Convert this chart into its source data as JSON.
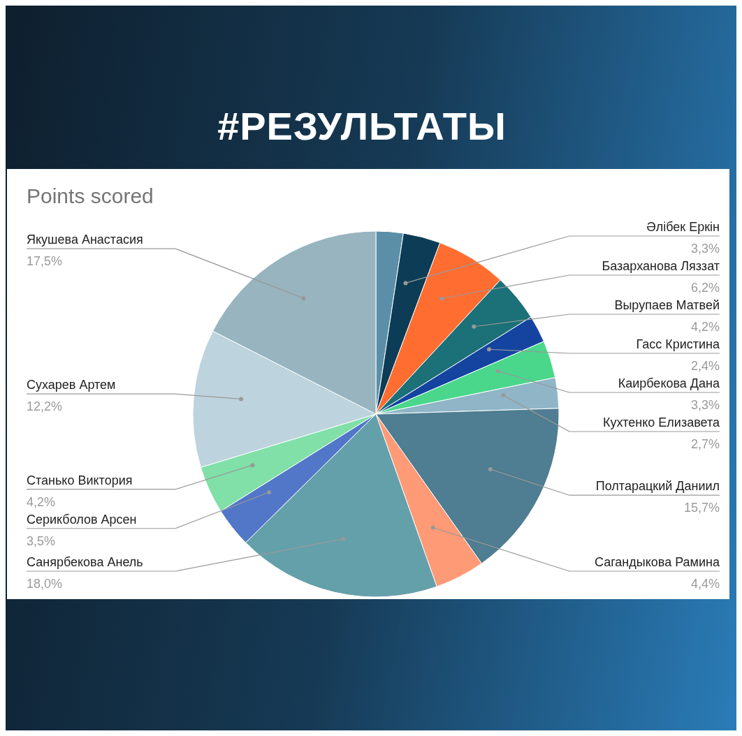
{
  "chart_data": {
    "type": "pie",
    "title": "#РЕЗУЛЬТАТЫ",
    "subtitle": "Points scored",
    "categories": [
      null,
      "Әлібек Еркін",
      "Базарханова Ляззат",
      "Вырупаев Матвей",
      "Гасс Кристина",
      "Каирбекова Дана",
      "Кухтенко Елизавета",
      "Полтарацкий Даниил",
      "Сагандыкова Рамина",
      "Санярбекова Анель",
      "Серикболов Арсен",
      "Станько Виктория",
      "Сухарев Артем",
      "Якушева Анастасия"
    ],
    "values": [
      2.4,
      3.3,
      6.2,
      4.2,
      2.4,
      3.3,
      2.7,
      15.7,
      4.4,
      18.0,
      3.5,
      4.2,
      12.2,
      17.5
    ],
    "value_labels": [
      null,
      "3,3%",
      "6,2%",
      "4,2%",
      "2,4%",
      "3,3%",
      "2,7%",
      "15,7%",
      "4,4%",
      "18,0%",
      "3,5%",
      "4,2%",
      "12,2%",
      "17,5%"
    ],
    "colors": [
      "#5b8fa8",
      "#0d3d56",
      "#ff6d31",
      "#1b7177",
      "#1444a0",
      "#4ad78b",
      "#8fb5c7",
      "#4f7d91",
      "#ff9a76",
      "#64a0aa",
      "#5277c8",
      "#80e0a8",
      "#bdd3dd",
      "#97b4bf"
    ]
  }
}
